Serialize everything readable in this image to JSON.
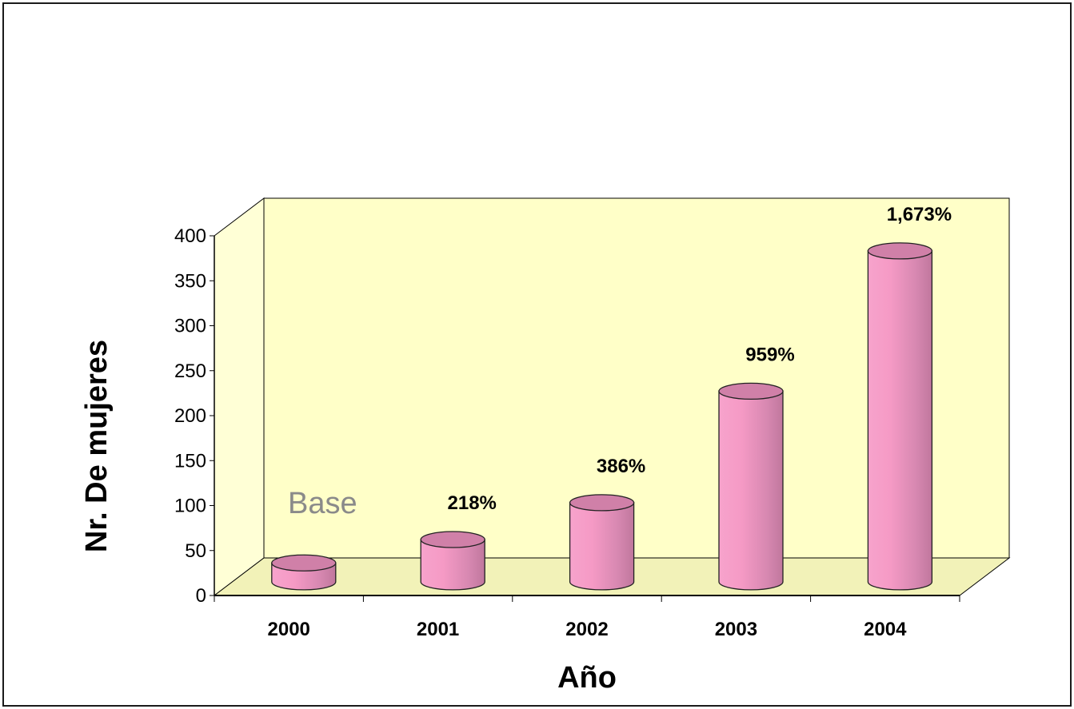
{
  "chart_data": {
    "type": "bar",
    "categories": [
      "2000",
      "2001",
      "2002",
      "2003",
      "2004"
    ],
    "values": [
      21,
      47,
      88,
      212,
      368
    ],
    "data_labels": [
      "",
      "218%",
      "386%",
      "959%",
      "1,673%"
    ],
    "base_label": "Base",
    "xlabel": "Año",
    "ylabel": "Nr. De mujeres",
    "ylim": [
      0,
      400
    ],
    "yticks": [
      "0",
      "50",
      "100",
      "150",
      "200",
      "250",
      "300",
      "350",
      "400"
    ],
    "grid": false,
    "legend": "none",
    "colors": {
      "bar_front": "#f79ac6",
      "bar_shade": "#c77aa0",
      "bar_top": "#d080a8",
      "back_wall": "#ffffc8",
      "side_wall": "#ffffd6",
      "floor": "#f2f2b8"
    }
  }
}
